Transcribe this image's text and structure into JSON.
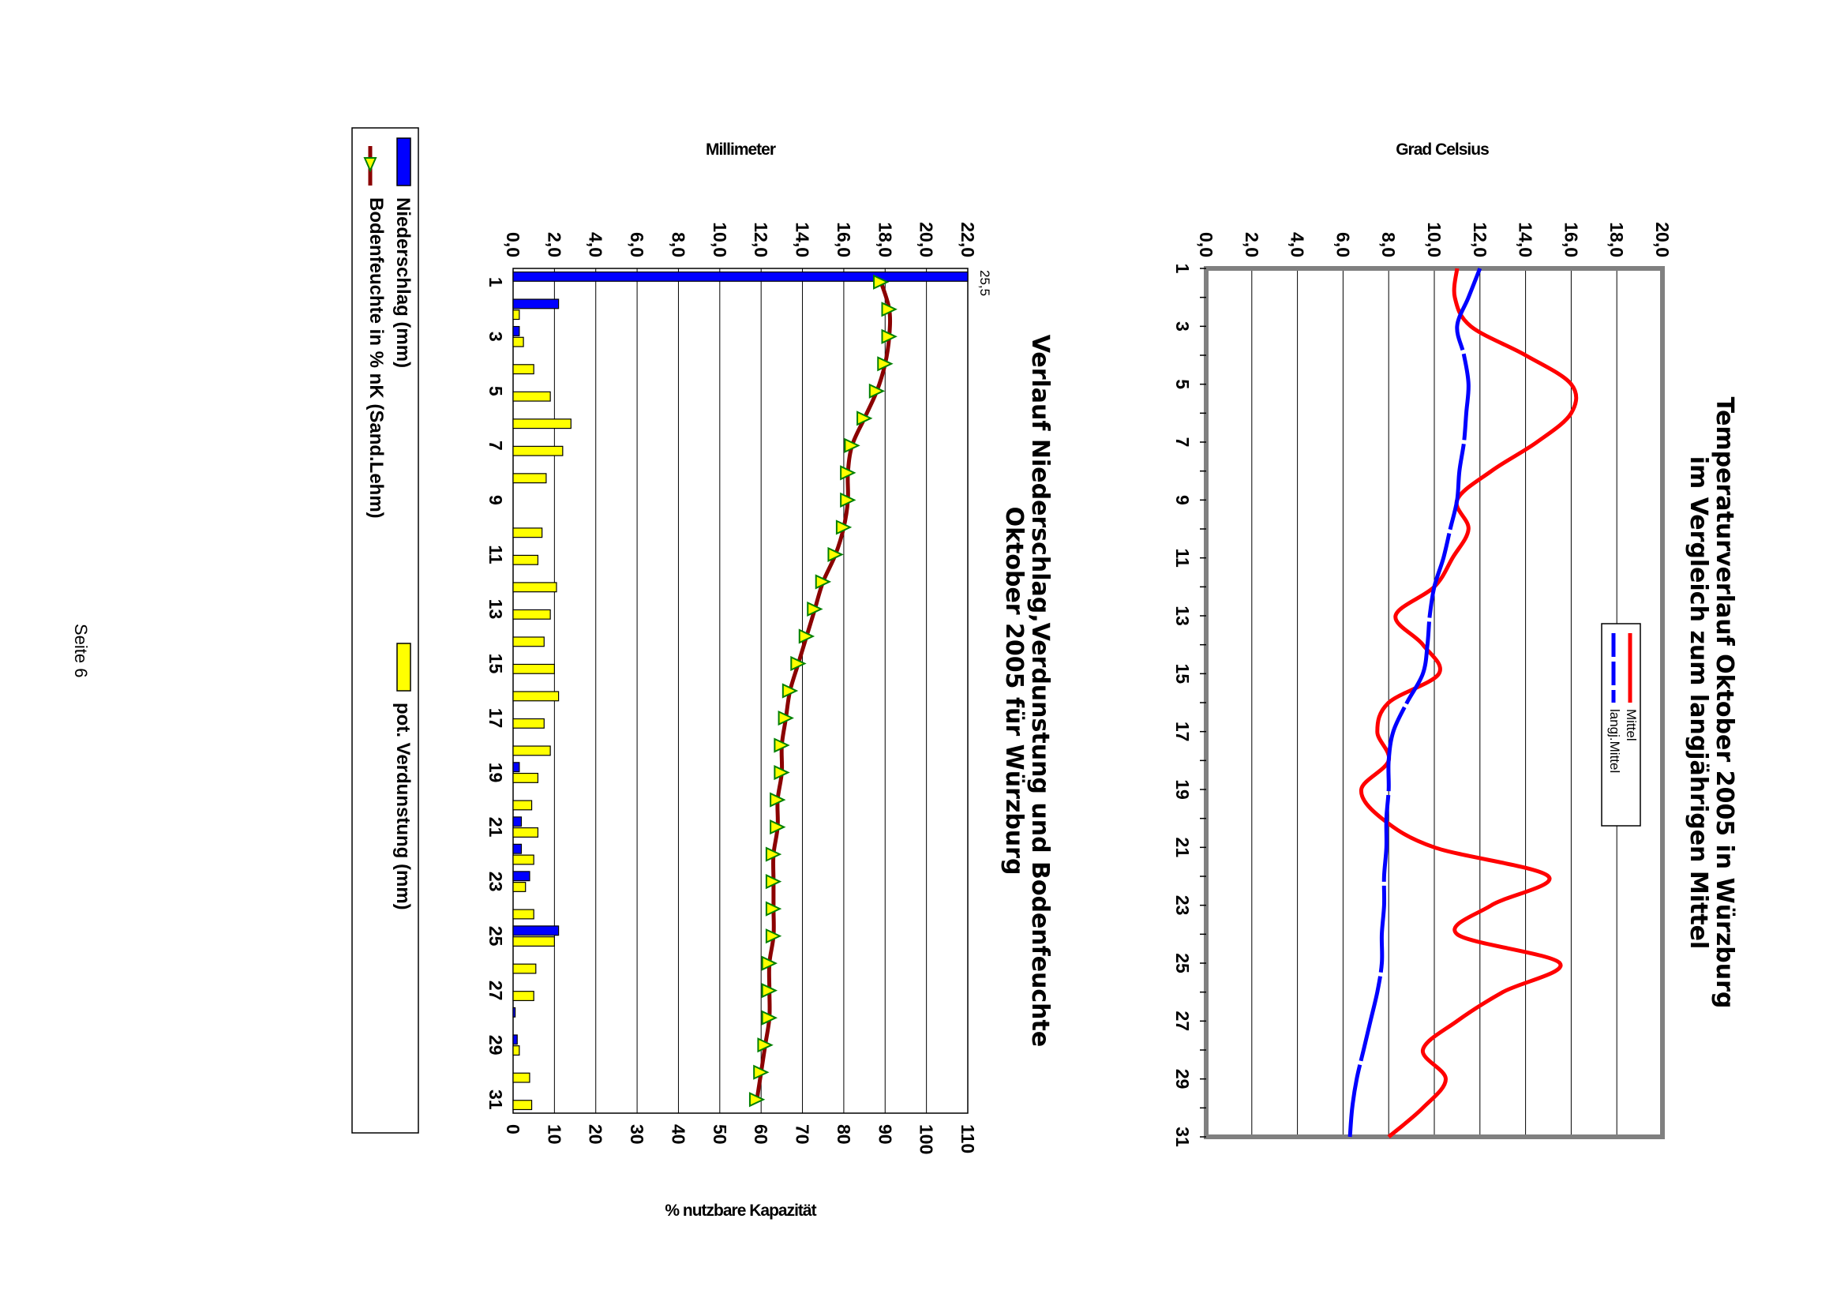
{
  "page_label": "Seite 6",
  "chart_data": [
    {
      "type": "line",
      "title": "Temperaturverlauf Oktober 2005 in Würzburg",
      "subtitle": "im Vergleich zum langjährigen Mittel",
      "ylabel": "Grad Celsius",
      "xlabel": "",
      "ylim": [
        0,
        20
      ],
      "y_ticks": [
        "0,0",
        "2,0",
        "4,0",
        "6,0",
        "8,0",
        "10,0",
        "12,0",
        "14,0",
        "16,0",
        "18,0",
        "20,0"
      ],
      "x": [
        1,
        2,
        3,
        4,
        5,
        6,
        7,
        8,
        9,
        10,
        11,
        12,
        13,
        14,
        15,
        16,
        17,
        18,
        19,
        20,
        21,
        22,
        23,
        24,
        25,
        26,
        27,
        28,
        29,
        30,
        31
      ],
      "x_ticks": [
        "1",
        "3",
        "5",
        "7",
        "9",
        "11",
        "13",
        "15",
        "17",
        "19",
        "21",
        "23",
        "25",
        "27",
        "29",
        "31"
      ],
      "grid": true,
      "legend_position": "right",
      "series": [
        {
          "name": "Mittel",
          "color": "#ff0000",
          "values": [
            11.0,
            10.9,
            11.6,
            14.0,
            16.0,
            16.0,
            14.5,
            12.5,
            11.0,
            11.5,
            10.8,
            10.0,
            8.3,
            9.5,
            10.2,
            8.0,
            7.5,
            8.0,
            6.8,
            7.7,
            10.0,
            15.0,
            12.5,
            11.0,
            15.5,
            13.0,
            11.0,
            9.5,
            10.5,
            9.5,
            8.0
          ]
        },
        {
          "name": "langj.Mittel",
          "color": "#0000ff",
          "values": [
            12.0,
            11.5,
            11.0,
            11.3,
            11.5,
            11.4,
            11.3,
            11.1,
            11.0,
            10.7,
            10.4,
            10.0,
            9.8,
            9.7,
            9.5,
            8.8,
            8.2,
            8.0,
            8.0,
            7.9,
            7.9,
            7.8,
            7.8,
            7.7,
            7.7,
            7.5,
            7.2,
            6.9,
            6.6,
            6.4,
            6.3
          ]
        }
      ]
    },
    {
      "type": "bar",
      "title": "Verlauf Niederschlag,Verdunstung und Bodenfeuchte",
      "subtitle": "Oktober 2005 für Würzburg",
      "ylabel": "Millimeter",
      "y2label": "% nutzbare Kapazität",
      "ylim": [
        0,
        22
      ],
      "y2lim": [
        0,
        110
      ],
      "y_ticks": [
        "0,0",
        "2,0",
        "4,0",
        "6,0",
        "8,0",
        "10,0",
        "12,0",
        "14,0",
        "16,0",
        "18,0",
        "20,0",
        "22,0"
      ],
      "y2_ticks": [
        "0",
        "10",
        "20",
        "30",
        "40",
        "50",
        "60",
        "70",
        "80",
        "90",
        "100",
        "110"
      ],
      "x": [
        1,
        2,
        3,
        4,
        5,
        6,
        7,
        8,
        9,
        10,
        11,
        12,
        13,
        14,
        15,
        16,
        17,
        18,
        19,
        20,
        21,
        22,
        23,
        24,
        25,
        26,
        27,
        28,
        29,
        30,
        31
      ],
      "x_ticks": [
        "1",
        "3",
        "5",
        "7",
        "9",
        "11",
        "13",
        "15",
        "17",
        "19",
        "21",
        "23",
        "25",
        "27",
        "29",
        "31"
      ],
      "grid": true,
      "annotations": [
        {
          "text": "25,5",
          "x": 1
        }
      ],
      "legend_position": "bottom",
      "series": [
        {
          "name": "Niederschlag (mm)",
          "color": "#0000ff",
          "values": [
            25.5,
            2.2,
            0.3,
            0.0,
            0.0,
            0.0,
            0.0,
            0.0,
            0.0,
            0.0,
            0.0,
            0.0,
            0.0,
            0.0,
            0.0,
            0.0,
            0.0,
            0.0,
            0.3,
            0.0,
            0.4,
            0.4,
            0.8,
            0.0,
            2.2,
            0.0,
            0.0,
            0.1,
            0.2,
            0.0,
            0.0
          ]
        },
        {
          "name": "pot. Verdunstung (mm)",
          "color": "#ffff00",
          "values": [
            0.0,
            0.3,
            0.5,
            1.0,
            1.8,
            2.8,
            2.4,
            1.6,
            0.0,
            1.4,
            1.2,
            2.1,
            1.8,
            1.5,
            2.0,
            2.2,
            1.5,
            1.8,
            1.2,
            0.9,
            1.2,
            1.0,
            0.6,
            1.0,
            2.0,
            1.1,
            1.0,
            0.0,
            0.3,
            0.8,
            0.9
          ]
        },
        {
          "name": "Bodenfeuchte in % nK (Sand.Lehm)",
          "color": "#8b0000",
          "marker_color": "#ffff00",
          "axis": "y2",
          "values": [
            89,
            91,
            91,
            90,
            88,
            85,
            82,
            81,
            81,
            80,
            78,
            75,
            73,
            71,
            69,
            67,
            66,
            65,
            65,
            64,
            64,
            63,
            63,
            63,
            63,
            62,
            62,
            62,
            61,
            60,
            59
          ]
        }
      ]
    }
  ]
}
